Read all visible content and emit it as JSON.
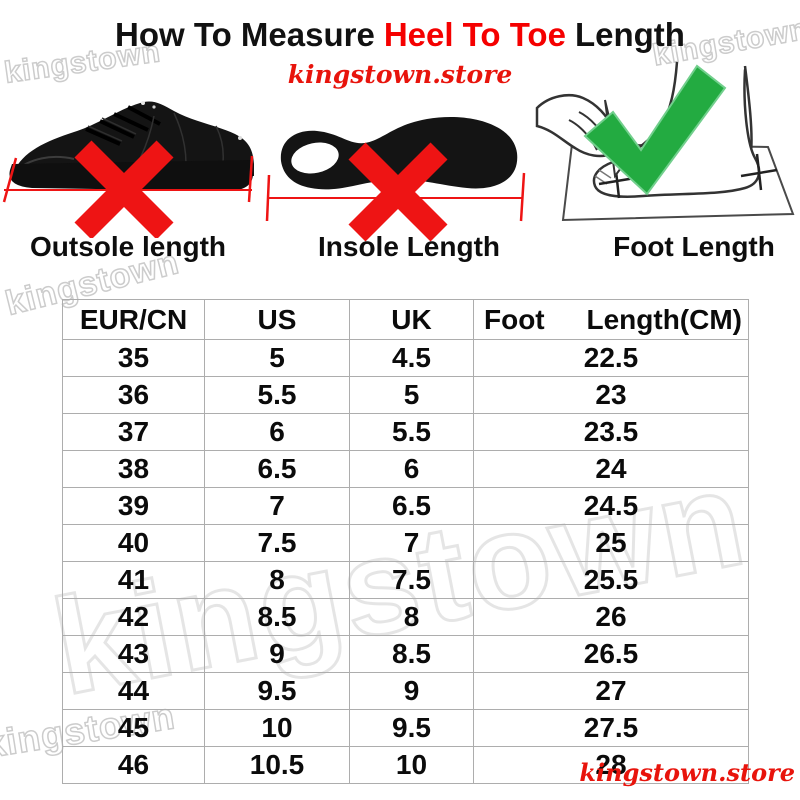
{
  "title": {
    "part1": "How To Measure",
    "highlight": "Heel To Toe",
    "part2": "Length"
  },
  "brand": {
    "store_top": "kingstown.store",
    "store_bottom": "kingstown.store",
    "watermark": "kingstown"
  },
  "figures": {
    "outsole": {
      "label": "Outsole length",
      "mark": "cross-icon"
    },
    "insole": {
      "label": "Insole Length",
      "mark": "cross-icon"
    },
    "foot": {
      "label": "Foot Length",
      "mark": "check-icon"
    }
  },
  "colors": {
    "accent_red": "#ee1414",
    "title_red": "#f50000",
    "brand_red": "#e8140c",
    "check_green": "#23ab41",
    "table_border": "#adadad",
    "watermark_gray": "#cccccc"
  },
  "chart_data": {
    "type": "table",
    "columns": [
      "EUR/CN",
      "US",
      "UK",
      "Foot Length(CM)"
    ],
    "header_display": {
      "col1": "EUR/CN",
      "col2": "US",
      "col3": "UK",
      "col4_left": "Foot",
      "col4_right": "Length(CM)"
    },
    "rows": [
      [
        "35",
        "5",
        "4.5",
        "22.5"
      ],
      [
        "36",
        "5.5",
        "5",
        "23"
      ],
      [
        "37",
        "6",
        "5.5",
        "23.5"
      ],
      [
        "38",
        "6.5",
        "6",
        "24"
      ],
      [
        "39",
        "7",
        "6.5",
        "24.5"
      ],
      [
        "40",
        "7.5",
        "7",
        "25"
      ],
      [
        "41",
        "8",
        "7.5",
        "25.5"
      ],
      [
        "42",
        "8.5",
        "8",
        "26"
      ],
      [
        "43",
        "9",
        "8.5",
        "26.5"
      ],
      [
        "44",
        "9.5",
        "9",
        "27"
      ],
      [
        "45",
        "10",
        "9.5",
        "27.5"
      ],
      [
        "46",
        "10.5",
        "10",
        "28"
      ]
    ]
  }
}
